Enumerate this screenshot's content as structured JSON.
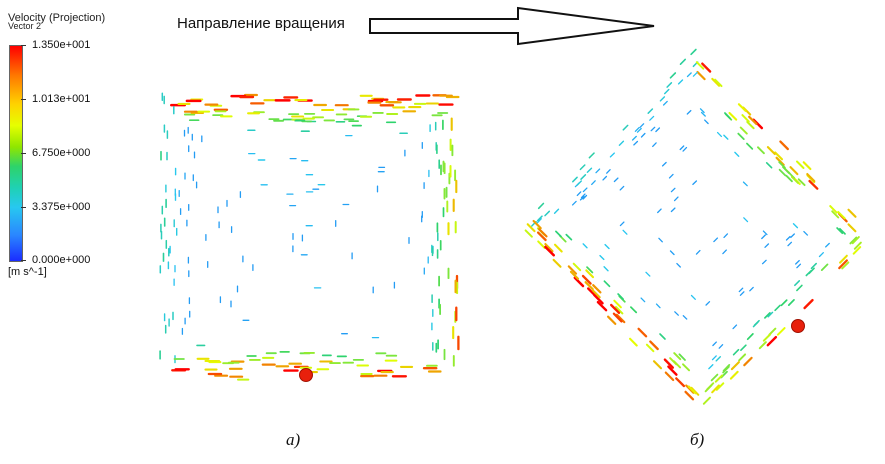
{
  "legend": {
    "title": "Velocity (Projection)",
    "subtitle": "Vector 2",
    "ticks": [
      "1.350e+001",
      "1.013e+001",
      "6.750e+000",
      "3.375e+000",
      "0.000e+000"
    ],
    "units": "[m s^-1]",
    "colors": [
      "#ff0000",
      "#ffd200",
      "#2ed36a",
      "#27c8f0",
      "#1a2cff"
    ]
  },
  "rotation": {
    "label": "Направление вращения"
  },
  "panels": [
    {
      "caption": "а)",
      "shape": "square",
      "marker_color": "#e8200c"
    },
    {
      "caption": "б)",
      "shape": "rotated-square",
      "marker_color": "#e8200c"
    }
  ]
}
